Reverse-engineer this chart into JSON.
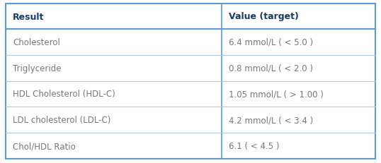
{
  "header": [
    "Result",
    "Value (target)"
  ],
  "rows": [
    [
      "Cholesterol",
      "6.4 mmol/L ( < 5.0 )"
    ],
    [
      "Triglyceride",
      "0.8 mmol/L ( < 2.0 )"
    ],
    [
      "HDL Cholesterol (HDL-C)",
      "1.05 mmol/L ( > 1.00 )"
    ],
    [
      "LDL cholesterol (LDL-C)",
      "4.2 mmol/L ( < 3.4 )"
    ],
    [
      "Chol/HDL Ratio",
      "6.1 ( < 4.5 )"
    ]
  ],
  "col_split": 0.585,
  "header_text_color": "#1a3a6b",
  "row_text_color": "#777777",
  "border_color": "#5b9bd5",
  "bg_color": "#ffffff",
  "header_fontsize": 9.0,
  "row_fontsize": 8.5,
  "inner_line_color": "#aac8e8"
}
